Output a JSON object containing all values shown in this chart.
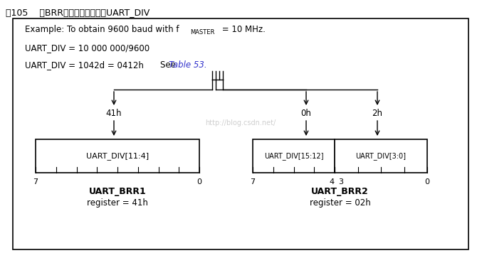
{
  "title": "图105    在BRR寄存器里如何编写UART_DIV",
  "line2": "UART_DIV = 10 000 000/9600",
  "line3_main": "UART_DIV = 1042d = 0412h",
  "line3_see": "    See ",
  "line3_link": "Table 53.",
  "bg_color": "#ffffff",
  "border_color": "#000000",
  "title_color": "#000000",
  "link_color": "#3333cc",
  "box1_label": "UART_DIV[11:4]",
  "box2a_label": "UART_DIV[15:12]",
  "box2b_label": "UART_DIV[3:0]",
  "label_41h": "41h",
  "label_0h": "0h",
  "label_2h": "2h",
  "brr1_name": "UART_BRR1",
  "brr1_reg": "register = 41h",
  "brr2_name": "UART_BRR2",
  "brr2_reg": "register = 02h",
  "watermark": "http://blog.csdn.net/"
}
